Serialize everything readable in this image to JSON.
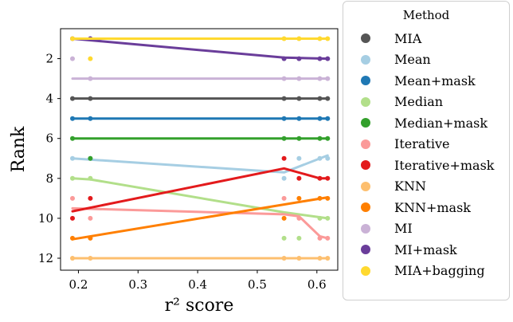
{
  "chart_data": {
    "type": "scatter",
    "xlabel": "r² score",
    "ylabel": "Rank",
    "xlim": [
      0.17,
      0.635
    ],
    "ylim": [
      0.5,
      12.6
    ],
    "y_inverted": true,
    "xticks": [
      0.2,
      0.3,
      0.4,
      0.5,
      0.6
    ],
    "yticks": [
      2,
      4,
      6,
      8,
      10,
      12
    ],
    "legend": {
      "title": "Method",
      "placement": "outside-right"
    },
    "series": [
      {
        "name": "MIA",
        "color": "#555555",
        "points": [
          [
            0.19,
            4
          ],
          [
            0.22,
            4
          ],
          [
            0.545,
            4
          ],
          [
            0.57,
            4
          ],
          [
            0.605,
            4
          ],
          [
            0.618,
            4
          ]
        ],
        "trend": [
          [
            0.19,
            4
          ],
          [
            0.618,
            4
          ]
        ]
      },
      {
        "name": "Mean",
        "color": "#a6cee3",
        "points": [
          [
            0.19,
            7
          ],
          [
            0.22,
            7
          ],
          [
            0.545,
            8
          ],
          [
            0.57,
            7
          ],
          [
            0.605,
            7
          ],
          [
            0.618,
            7
          ]
        ],
        "trend": [
          [
            0.19,
            7
          ],
          [
            0.545,
            7.7
          ],
          [
            0.618,
            6.85
          ]
        ]
      },
      {
        "name": "Mean+mask",
        "color": "#1f78b4",
        "points": [
          [
            0.19,
            5
          ],
          [
            0.22,
            5
          ],
          [
            0.545,
            5
          ],
          [
            0.57,
            5
          ],
          [
            0.605,
            5
          ],
          [
            0.618,
            5
          ]
        ],
        "trend": [
          [
            0.19,
            5
          ],
          [
            0.618,
            5
          ]
        ]
      },
      {
        "name": "Median",
        "color": "#b2df8a",
        "points": [
          [
            0.19,
            8
          ],
          [
            0.22,
            8
          ],
          [
            0.545,
            11
          ],
          [
            0.57,
            11
          ],
          [
            0.605,
            10
          ],
          [
            0.618,
            10
          ]
        ],
        "trend": [
          [
            0.19,
            8
          ],
          [
            0.22,
            8.05
          ],
          [
            0.545,
            9.7
          ],
          [
            0.618,
            10
          ]
        ]
      },
      {
        "name": "Median+mask",
        "color": "#33a02c",
        "points": [
          [
            0.19,
            6
          ],
          [
            0.22,
            7
          ],
          [
            0.545,
            6
          ],
          [
            0.57,
            6
          ],
          [
            0.605,
            6
          ],
          [
            0.618,
            6
          ]
        ],
        "trend": [
          [
            0.19,
            6
          ],
          [
            0.618,
            6
          ]
        ]
      },
      {
        "name": "Iterative",
        "color": "#fb9a99",
        "points": [
          [
            0.19,
            9
          ],
          [
            0.22,
            10
          ],
          [
            0.545,
            9
          ],
          [
            0.57,
            10
          ],
          [
            0.605,
            11
          ],
          [
            0.618,
            11
          ]
        ],
        "trend": [
          [
            0.19,
            9.5
          ],
          [
            0.545,
            9.8
          ],
          [
            0.57,
            9.9
          ],
          [
            0.605,
            10.9
          ],
          [
            0.618,
            11
          ]
        ]
      },
      {
        "name": "Iterative+mask",
        "color": "#e31a1c",
        "points": [
          [
            0.19,
            10
          ],
          [
            0.22,
            9
          ],
          [
            0.545,
            7
          ],
          [
            0.57,
            8
          ],
          [
            0.605,
            8
          ],
          [
            0.618,
            8
          ]
        ],
        "trend": [
          [
            0.19,
            9.65
          ],
          [
            0.545,
            7.5
          ],
          [
            0.605,
            8
          ],
          [
            0.618,
            8
          ]
        ]
      },
      {
        "name": "KNN",
        "color": "#fdbf6f",
        "points": [
          [
            0.19,
            12
          ],
          [
            0.22,
            12
          ],
          [
            0.545,
            12
          ],
          [
            0.57,
            12
          ],
          [
            0.605,
            12
          ],
          [
            0.618,
            12
          ]
        ],
        "trend": [
          [
            0.19,
            12
          ],
          [
            0.618,
            12
          ]
        ]
      },
      {
        "name": "KNN+mask",
        "color": "#ff7f00",
        "points": [
          [
            0.19,
            11
          ],
          [
            0.22,
            11
          ],
          [
            0.545,
            10
          ],
          [
            0.57,
            9
          ],
          [
            0.605,
            9
          ],
          [
            0.618,
            9
          ]
        ],
        "trend": [
          [
            0.19,
            11.05
          ],
          [
            0.618,
            8.95
          ]
        ]
      },
      {
        "name": "MI",
        "color": "#cab2d6",
        "points": [
          [
            0.19,
            2
          ],
          [
            0.22,
            3
          ],
          [
            0.545,
            3
          ],
          [
            0.57,
            3
          ],
          [
            0.605,
            3
          ],
          [
            0.618,
            3
          ]
        ],
        "trend": [
          [
            0.19,
            3
          ],
          [
            0.618,
            3
          ]
        ]
      },
      {
        "name": "MI+mask",
        "color": "#6a3d9a",
        "points": [
          [
            0.19,
            1
          ],
          [
            0.22,
            1
          ],
          [
            0.545,
            2
          ],
          [
            0.57,
            2
          ],
          [
            0.605,
            2
          ],
          [
            0.618,
            2
          ]
        ],
        "trend": [
          [
            0.19,
            1
          ],
          [
            0.545,
            1.95
          ],
          [
            0.618,
            2
          ]
        ]
      },
      {
        "name": "MIA+bagging",
        "color": "#ffd92f",
        "points": [
          [
            0.19,
            1
          ],
          [
            0.22,
            2
          ],
          [
            0.545,
            1
          ],
          [
            0.57,
            1
          ],
          [
            0.605,
            1
          ],
          [
            0.618,
            1
          ]
        ],
        "trend": [
          [
            0.19,
            1
          ],
          [
            0.618,
            1
          ]
        ]
      }
    ]
  }
}
